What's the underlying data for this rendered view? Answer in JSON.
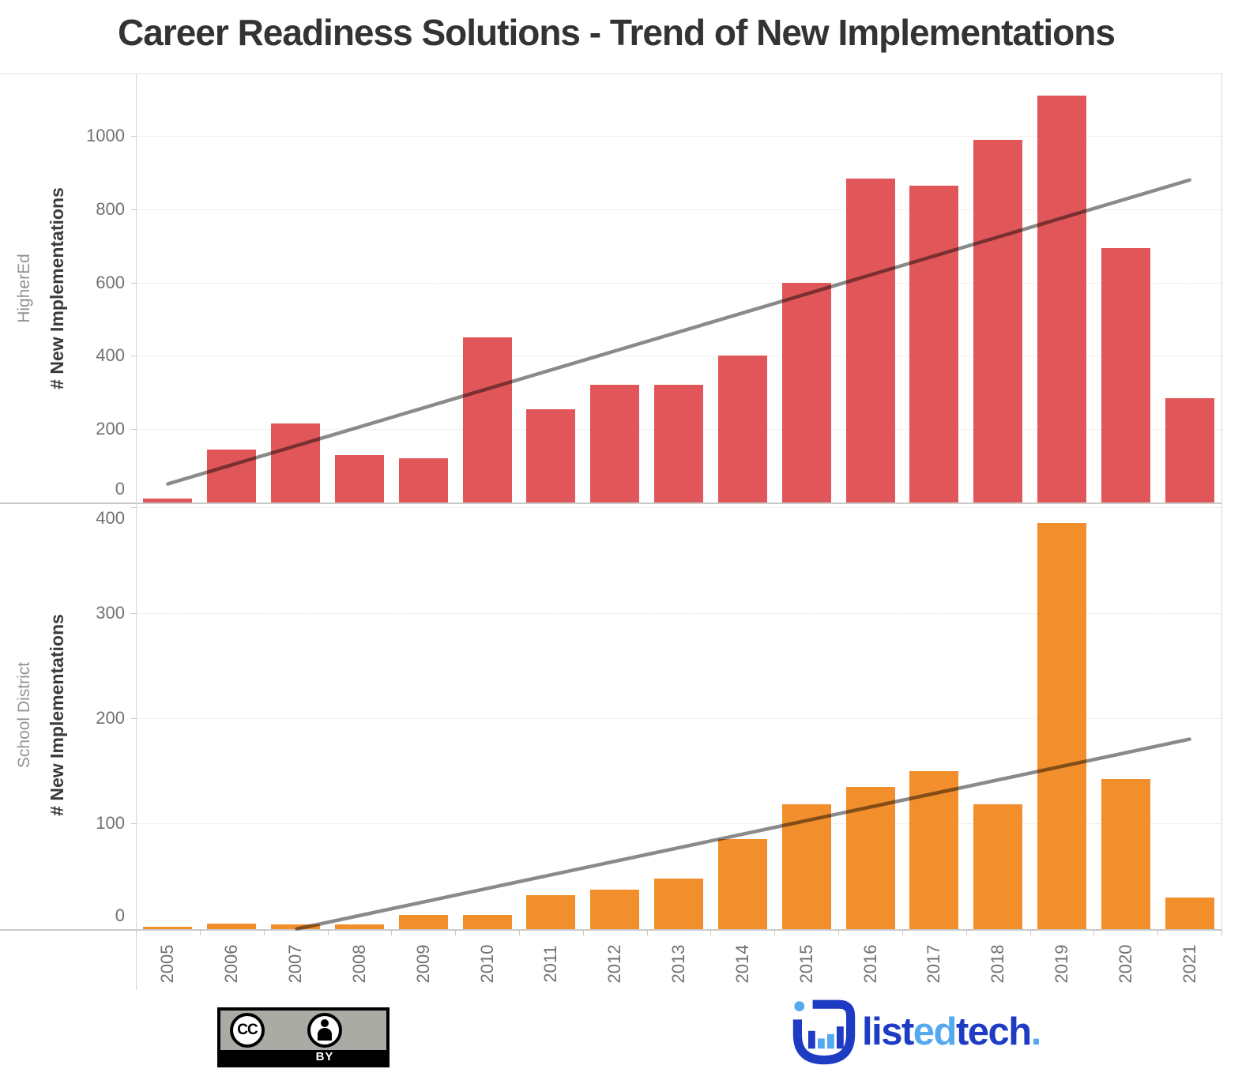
{
  "title": "Career Readiness Solutions - Trend of New Implementations",
  "years": [
    "2005",
    "2006",
    "2007",
    "2008",
    "2009",
    "2010",
    "2011",
    "2012",
    "2013",
    "2014",
    "2015",
    "2016",
    "2017",
    "2018",
    "2019",
    "2020",
    "2021"
  ],
  "chart_data": {
    "type": "bar",
    "categories": [
      "2005",
      "2006",
      "2007",
      "2008",
      "2009",
      "2010",
      "2011",
      "2012",
      "2013",
      "2014",
      "2015",
      "2016",
      "2017",
      "2018",
      "2019",
      "2020",
      "2021"
    ],
    "title": "Career Readiness Solutions - Trend of New Implementations",
    "xlabel": "",
    "grid": "horizontal-dotted",
    "trend_color": "#8a8a8a",
    "panels": [
      {
        "row_label": "HigherEd",
        "ylabel": "# New Implementations",
        "color": "#e15759",
        "yticks": [
          0,
          200,
          400,
          600,
          800,
          1000
        ],
        "ylim": [
          0,
          1170
        ],
        "series_name": "HigherEd # New Implementations",
        "values": [
          10,
          145,
          215,
          130,
          120,
          450,
          255,
          320,
          320,
          400,
          600,
          885,
          865,
          990,
          1110,
          695,
          285
        ],
        "trend": {
          "start_year": "2005",
          "start_value": 50,
          "end_year": "2021",
          "end_value": 880
        }
      },
      {
        "row_label": "School District",
        "ylabel": "# New Implementations",
        "color": "#f28e2b",
        "yticks": [
          0,
          100,
          200,
          300,
          400
        ],
        "ylim": [
          0,
          400
        ],
        "series_name": "School District # New Implementations",
        "values": [
          2,
          5,
          4,
          4,
          13,
          13,
          32,
          37,
          48,
          85,
          118,
          135,
          150,
          118,
          385,
          142,
          30
        ],
        "trend": {
          "start_year": "2005",
          "start_value": -26,
          "end_year": "2021",
          "end_value": 180
        }
      }
    ]
  },
  "footer": {
    "cc_badge": {
      "cc_text": "CC",
      "by_text": "BY"
    },
    "logo": {
      "dark": "#1e3bc3",
      "light": "#55a9f1",
      "parts": [
        {
          "text": "list",
          "tone": "dark"
        },
        {
          "text": "ed",
          "tone": "light"
        },
        {
          "text": "tech",
          "tone": "dark"
        },
        {
          "text": ".",
          "tone": "light"
        }
      ]
    }
  }
}
